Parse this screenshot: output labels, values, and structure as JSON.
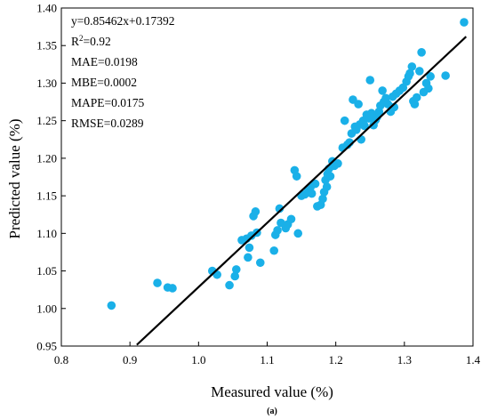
{
  "chart_data": {
    "type": "scatter",
    "xlabel": "Measured value (%)",
    "ylabel": "Predicted value (%)",
    "caption": "(a)",
    "xlim": [
      0.8,
      1.4
    ],
    "ylim": [
      0.95,
      1.4
    ],
    "x_ticks": [
      "0.8",
      "0.9",
      "1.0",
      "1.1",
      "1.2",
      "1.3",
      "1.4"
    ],
    "y_ticks": [
      "0.95",
      "1.00",
      "1.05",
      "1.10",
      "1.15",
      "1.20",
      "1.25",
      "1.30",
      "1.35",
      "1.40"
    ],
    "grid": false,
    "point_color": "#1AB0E8",
    "line_color": "#000000",
    "fit_line": {
      "slope": 0.85462,
      "intercept": 0.17392,
      "x_range": [
        0.91,
        1.39
      ]
    },
    "stats": {
      "equation": "y=0.85462x+0.17392",
      "r2_prefix": "R",
      "r2_sup": "2",
      "r2_value": "=0.92",
      "mae": "MAE=0.0198",
      "mbe": "MBE=0.0002",
      "mape": "MAPE=0.0175",
      "rmse": "RMSE=0.0289"
    },
    "points": [
      {
        "x": 0.873,
        "y": 1.004
      },
      {
        "x": 0.94,
        "y": 1.034
      },
      {
        "x": 0.955,
        "y": 1.028
      },
      {
        "x": 0.962,
        "y": 1.027
      },
      {
        "x": 1.02,
        "y": 1.05
      },
      {
        "x": 1.027,
        "y": 1.045
      },
      {
        "x": 1.045,
        "y": 1.031
      },
      {
        "x": 1.053,
        "y": 1.043
      },
      {
        "x": 1.055,
        "y": 1.052
      },
      {
        "x": 1.063,
        "y": 1.091
      },
      {
        "x": 1.07,
        "y": 1.093
      },
      {
        "x": 1.072,
        "y": 1.068
      },
      {
        "x": 1.074,
        "y": 1.081
      },
      {
        "x": 1.077,
        "y": 1.097
      },
      {
        "x": 1.08,
        "y": 1.123
      },
      {
        "x": 1.083,
        "y": 1.129
      },
      {
        "x": 1.085,
        "y": 1.101
      },
      {
        "x": 1.09,
        "y": 1.061
      },
      {
        "x": 1.11,
        "y": 1.077
      },
      {
        "x": 1.112,
        "y": 1.098
      },
      {
        "x": 1.115,
        "y": 1.104
      },
      {
        "x": 1.118,
        "y": 1.133
      },
      {
        "x": 1.12,
        "y": 1.114
      },
      {
        "x": 1.127,
        "y": 1.107
      },
      {
        "x": 1.13,
        "y": 1.112
      },
      {
        "x": 1.135,
        "y": 1.119
      },
      {
        "x": 1.14,
        "y": 1.184
      },
      {
        "x": 1.143,
        "y": 1.176
      },
      {
        "x": 1.145,
        "y": 1.1
      },
      {
        "x": 1.15,
        "y": 1.15
      },
      {
        "x": 1.155,
        "y": 1.152
      },
      {
        "x": 1.16,
        "y": 1.158
      },
      {
        "x": 1.163,
        "y": 1.161
      },
      {
        "x": 1.165,
        "y": 1.153
      },
      {
        "x": 1.17,
        "y": 1.166
      },
      {
        "x": 1.173,
        "y": 1.136
      },
      {
        "x": 1.178,
        "y": 1.138
      },
      {
        "x": 1.181,
        "y": 1.146
      },
      {
        "x": 1.183,
        "y": 1.155
      },
      {
        "x": 1.185,
        "y": 1.171
      },
      {
        "x": 1.187,
        "y": 1.162
      },
      {
        "x": 1.188,
        "y": 1.179
      },
      {
        "x": 1.19,
        "y": 1.186
      },
      {
        "x": 1.192,
        "y": 1.176
      },
      {
        "x": 1.195,
        "y": 1.196
      },
      {
        "x": 1.198,
        "y": 1.19
      },
      {
        "x": 1.203,
        "y": 1.193
      },
      {
        "x": 1.21,
        "y": 1.214
      },
      {
        "x": 1.213,
        "y": 1.25
      },
      {
        "x": 1.217,
        "y": 1.218
      },
      {
        "x": 1.22,
        "y": 1.221
      },
      {
        "x": 1.223,
        "y": 1.233
      },
      {
        "x": 1.225,
        "y": 1.278
      },
      {
        "x": 1.228,
        "y": 1.242
      },
      {
        "x": 1.23,
        "y": 1.238
      },
      {
        "x": 1.233,
        "y": 1.272
      },
      {
        "x": 1.235,
        "y": 1.245
      },
      {
        "x": 1.237,
        "y": 1.225
      },
      {
        "x": 1.24,
        "y": 1.25
      },
      {
        "x": 1.242,
        "y": 1.243
      },
      {
        "x": 1.245,
        "y": 1.258
      },
      {
        "x": 1.248,
        "y": 1.253
      },
      {
        "x": 1.25,
        "y": 1.304
      },
      {
        "x": 1.252,
        "y": 1.26
      },
      {
        "x": 1.255,
        "y": 1.244
      },
      {
        "x": 1.258,
        "y": 1.251
      },
      {
        "x": 1.26,
        "y": 1.255
      },
      {
        "x": 1.263,
        "y": 1.262
      },
      {
        "x": 1.265,
        "y": 1.27
      },
      {
        "x": 1.268,
        "y": 1.29
      },
      {
        "x": 1.27,
        "y": 1.275
      },
      {
        "x": 1.273,
        "y": 1.28
      },
      {
        "x": 1.276,
        "y": 1.272
      },
      {
        "x": 1.28,
        "y": 1.262
      },
      {
        "x": 1.283,
        "y": 1.282
      },
      {
        "x": 1.285,
        "y": 1.268
      },
      {
        "x": 1.288,
        "y": 1.286
      },
      {
        "x": 1.293,
        "y": 1.29
      },
      {
        "x": 1.298,
        "y": 1.294
      },
      {
        "x": 1.303,
        "y": 1.302
      },
      {
        "x": 1.306,
        "y": 1.309
      },
      {
        "x": 1.308,
        "y": 1.313
      },
      {
        "x": 1.311,
        "y": 1.322
      },
      {
        "x": 1.313,
        "y": 1.276
      },
      {
        "x": 1.315,
        "y": 1.272
      },
      {
        "x": 1.318,
        "y": 1.281
      },
      {
        "x": 1.322,
        "y": 1.316
      },
      {
        "x": 1.325,
        "y": 1.341
      },
      {
        "x": 1.328,
        "y": 1.288
      },
      {
        "x": 1.332,
        "y": 1.3
      },
      {
        "x": 1.335,
        "y": 1.293
      },
      {
        "x": 1.338,
        "y": 1.309
      },
      {
        "x": 1.36,
        "y": 1.31
      },
      {
        "x": 1.387,
        "y": 1.381
      }
    ]
  }
}
